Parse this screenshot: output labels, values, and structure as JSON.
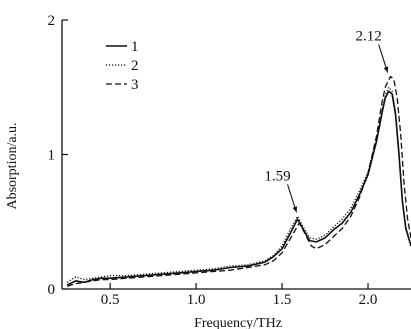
{
  "chart_data": {
    "type": "line",
    "title": "",
    "xlabel": "Frequency/THz",
    "ylabel": "Absorption/a.u.",
    "xlim": [
      0.22,
      2.25
    ],
    "ylim": [
      0,
      2
    ],
    "x_ticks": [
      0.5,
      1.0,
      1.5,
      2.0
    ],
    "x_tick_labels": [
      "0.5",
      "1.0",
      "1.5",
      "2.0"
    ],
    "y_ticks": [
      0,
      1,
      2
    ],
    "y_tick_labels": [
      "0",
      "1",
      "2"
    ],
    "grid": false,
    "legend_position": "top-left",
    "series": [
      {
        "name": "1",
        "style": "solid",
        "x": [
          0.25,
          0.3,
          0.35,
          0.4,
          0.45,
          0.5,
          0.6,
          0.7,
          0.8,
          0.9,
          1.0,
          1.1,
          1.2,
          1.3,
          1.4,
          1.45,
          1.5,
          1.55,
          1.59,
          1.62,
          1.66,
          1.7,
          1.75,
          1.8,
          1.85,
          1.9,
          1.95,
          2.0,
          2.05,
          2.08,
          2.1,
          2.12,
          2.14,
          2.16,
          2.18,
          2.2,
          2.22,
          2.25
        ],
        "y": [
          0.03,
          0.06,
          0.05,
          0.07,
          0.08,
          0.08,
          0.09,
          0.1,
          0.11,
          0.12,
          0.13,
          0.14,
          0.16,
          0.17,
          0.2,
          0.24,
          0.3,
          0.42,
          0.52,
          0.45,
          0.36,
          0.35,
          0.38,
          0.44,
          0.49,
          0.57,
          0.7,
          0.85,
          1.1,
          1.3,
          1.42,
          1.47,
          1.45,
          1.3,
          1.0,
          0.65,
          0.45,
          0.32
        ]
      },
      {
        "name": "2",
        "style": "dotted",
        "x": [
          0.25,
          0.3,
          0.35,
          0.4,
          0.45,
          0.5,
          0.6,
          0.7,
          0.8,
          0.9,
          1.0,
          1.1,
          1.2,
          1.3,
          1.4,
          1.45,
          1.5,
          1.55,
          1.59,
          1.62,
          1.66,
          1.7,
          1.75,
          1.8,
          1.85,
          1.9,
          1.95,
          2.0,
          2.05,
          2.08,
          2.1,
          2.12,
          2.14,
          2.16,
          2.18,
          2.2,
          2.22,
          2.25
        ],
        "y": [
          0.05,
          0.09,
          0.07,
          0.08,
          0.09,
          0.1,
          0.1,
          0.11,
          0.12,
          0.13,
          0.14,
          0.15,
          0.17,
          0.18,
          0.21,
          0.25,
          0.32,
          0.45,
          0.54,
          0.47,
          0.38,
          0.37,
          0.4,
          0.46,
          0.52,
          0.6,
          0.73,
          0.87,
          1.12,
          1.32,
          1.44,
          1.5,
          1.47,
          1.32,
          1.02,
          0.66,
          0.46,
          0.33
        ]
      },
      {
        "name": "3",
        "style": "dashed",
        "x": [
          0.25,
          0.3,
          0.35,
          0.4,
          0.45,
          0.5,
          0.6,
          0.7,
          0.8,
          0.9,
          1.0,
          1.1,
          1.2,
          1.3,
          1.4,
          1.45,
          1.5,
          1.55,
          1.6,
          1.63,
          1.67,
          1.7,
          1.75,
          1.8,
          1.85,
          1.9,
          1.95,
          2.0,
          2.05,
          2.08,
          2.1,
          2.13,
          2.15,
          2.17,
          2.19,
          2.21,
          2.23,
          2.25
        ],
        "y": [
          0.02,
          0.04,
          0.05,
          0.06,
          0.07,
          0.07,
          0.08,
          0.09,
          0.1,
          0.11,
          0.12,
          0.13,
          0.14,
          0.16,
          0.18,
          0.21,
          0.27,
          0.38,
          0.49,
          0.42,
          0.32,
          0.3,
          0.33,
          0.39,
          0.45,
          0.54,
          0.68,
          0.86,
          1.14,
          1.38,
          1.5,
          1.58,
          1.56,
          1.42,
          1.15,
          0.78,
          0.52,
          0.38
        ]
      }
    ],
    "annotations": [
      {
        "text": "1.59",
        "x": 1.59,
        "y": 0.54
      },
      {
        "text": "2.12",
        "x": 2.12,
        "y": 1.58
      }
    ]
  }
}
